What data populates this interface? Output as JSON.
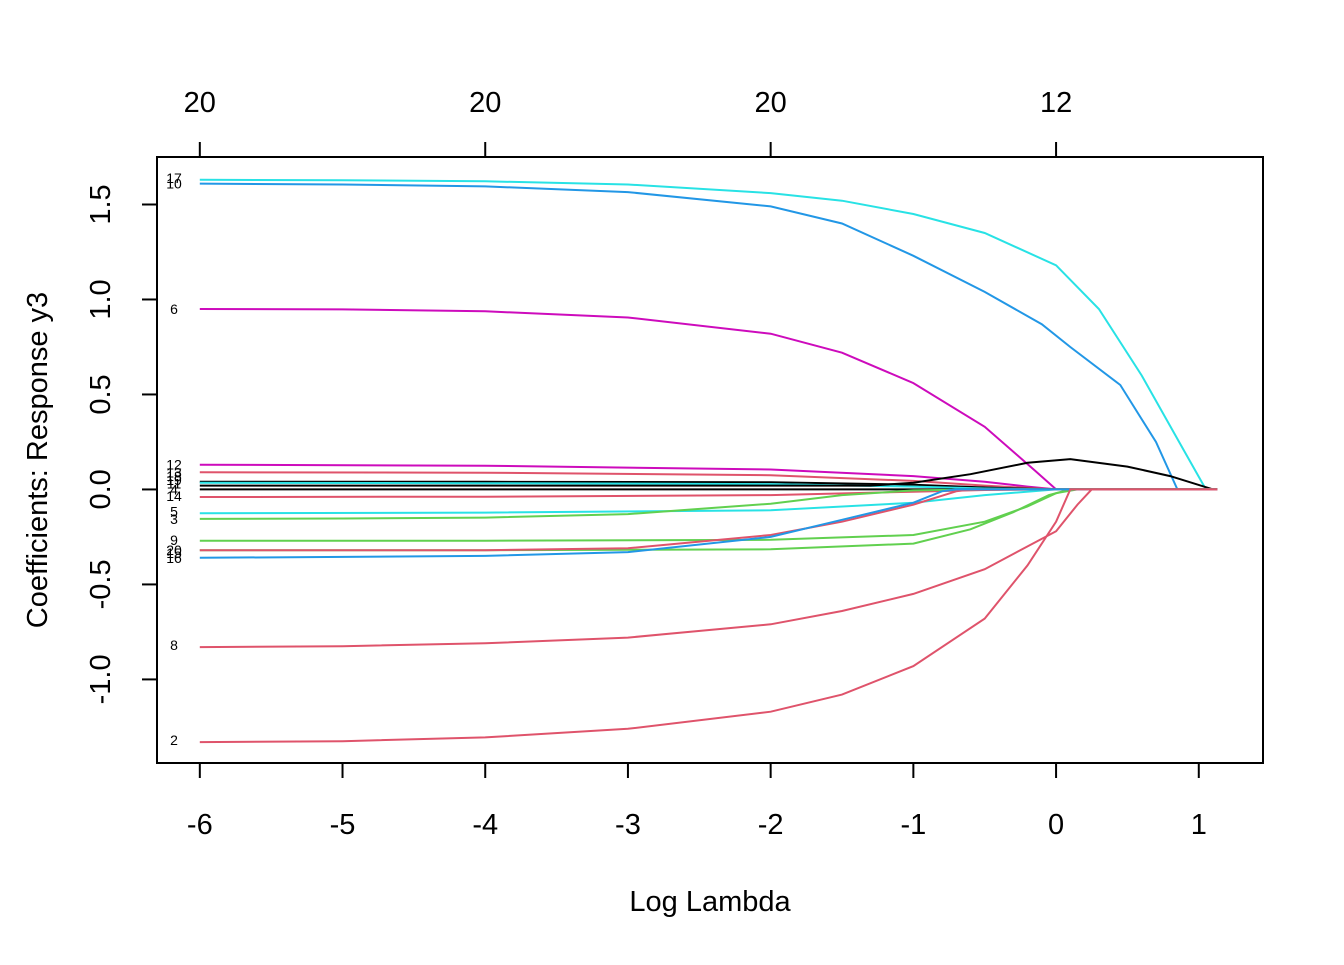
{
  "chart_data": {
    "type": "line",
    "xlabel": "Log Lambda",
    "ylabel": "Coefficients: Response y3",
    "xlim": [
      -6.3,
      1.45
    ],
    "ylim": [
      -1.44,
      1.75
    ],
    "x_ticks": [
      -6,
      -5,
      -4,
      -3,
      -2,
      -1,
      0,
      1
    ],
    "x_tick_labels": [
      "-6",
      "-5",
      "-4",
      "-3",
      "-2",
      "-1",
      "0",
      "1"
    ],
    "y_ticks": [
      -1.0,
      -0.5,
      0.0,
      0.5,
      1.0,
      1.5
    ],
    "y_tick_labels": [
      "-1.0",
      "-0.5",
      "0.0",
      "0.5",
      "1.0",
      "1.5"
    ],
    "top_axis": {
      "ticks": [
        -6,
        -4,
        -2,
        0
      ],
      "labels": [
        "20",
        "20",
        "20",
        "12"
      ]
    },
    "grid": false,
    "legend": "none",
    "series": [
      {
        "name": "17",
        "color": "#28e2e5",
        "points": [
          [
            -6,
            1.63
          ],
          [
            -5,
            1.628
          ],
          [
            -4,
            1.622
          ],
          [
            -3,
            1.605
          ],
          [
            -2,
            1.56
          ],
          [
            -1.5,
            1.52
          ],
          [
            -1,
            1.45
          ],
          [
            -0.5,
            1.35
          ],
          [
            0,
            1.18
          ],
          [
            0.3,
            0.95
          ],
          [
            0.6,
            0.6
          ],
          [
            0.9,
            0.2
          ],
          [
            1.05,
            0.0
          ],
          [
            1.13,
            0.0
          ]
        ]
      },
      {
        "name": "10",
        "color": "#2297e6",
        "points": [
          [
            -6,
            1.61
          ],
          [
            -5,
            1.605
          ],
          [
            -4,
            1.595
          ],
          [
            -3,
            1.565
          ],
          [
            -2,
            1.49
          ],
          [
            -1.5,
            1.4
          ],
          [
            -1,
            1.23
          ],
          [
            -0.5,
            1.04
          ],
          [
            -0.1,
            0.87
          ],
          [
            0.1,
            0.75
          ],
          [
            0.45,
            0.55
          ],
          [
            0.7,
            0.25
          ],
          [
            0.85,
            0.0
          ],
          [
            1.13,
            0.0
          ]
        ]
      },
      {
        "name": "6",
        "color": "#cd0bbc",
        "points": [
          [
            -6,
            0.95
          ],
          [
            -5,
            0.948
          ],
          [
            -4,
            0.938
          ],
          [
            -3,
            0.905
          ],
          [
            -2,
            0.82
          ],
          [
            -1.5,
            0.72
          ],
          [
            -1,
            0.56
          ],
          [
            -0.5,
            0.33
          ],
          [
            -0.15,
            0.1
          ],
          [
            0,
            0.0
          ],
          [
            1.13,
            0.0
          ]
        ]
      },
      {
        "name": "12",
        "color": "#cd0bbc",
        "points": [
          [
            -6,
            0.13
          ],
          [
            -4,
            0.125
          ],
          [
            -2,
            0.105
          ],
          [
            -1,
            0.07
          ],
          [
            -0.5,
            0.04
          ],
          [
            -0.2,
            0.015
          ],
          [
            0,
            0.0
          ],
          [
            1.13,
            0.0
          ]
        ]
      },
      {
        "name": "13",
        "color": "#df536b",
        "points": [
          [
            -6,
            0.09
          ],
          [
            -4,
            0.088
          ],
          [
            -2,
            0.075
          ],
          [
            -1,
            0.045
          ],
          [
            -0.5,
            0.02
          ],
          [
            0,
            0.0
          ],
          [
            1.13,
            0.0
          ]
        ]
      },
      {
        "name": "18",
        "color": "#000000",
        "points": [
          [
            -6,
            0.04
          ],
          [
            -4,
            0.04
          ],
          [
            -2,
            0.038
          ],
          [
            -1,
            0.025
          ],
          [
            -0.5,
            0.01
          ],
          [
            0,
            0.0
          ],
          [
            1.13,
            0.0
          ]
        ]
      },
      {
        "name": "19",
        "color": "#28e2e5",
        "points": [
          [
            -6,
            0.035
          ],
          [
            -4,
            0.033
          ],
          [
            -2,
            0.028
          ],
          [
            -1,
            0.015
          ],
          [
            -0.5,
            0.005
          ],
          [
            0,
            0.0
          ],
          [
            1.13,
            0.0
          ]
        ]
      },
      {
        "name": "11",
        "color": "#000000",
        "points": [
          [
            -6,
            0.02
          ],
          [
            -4,
            0.02
          ],
          [
            -2,
            0.02
          ],
          [
            -1.3,
            0.02
          ],
          [
            -1,
            0.035
          ],
          [
            -0.6,
            0.08
          ],
          [
            -0.2,
            0.14
          ],
          [
            0.1,
            0.16
          ],
          [
            0.5,
            0.12
          ],
          [
            0.8,
            0.07
          ],
          [
            1.1,
            0.0
          ],
          [
            1.13,
            0.0
          ]
        ]
      },
      {
        "name": "4",
        "color": "#000000",
        "points": [
          [
            -6,
            0.0
          ],
          [
            -4,
            0.0
          ],
          [
            -2,
            0.0
          ],
          [
            -1,
            0.0
          ],
          [
            1.13,
            0.0
          ]
        ]
      },
      {
        "name": "14",
        "color": "#df536b",
        "points": [
          [
            -6,
            -0.04
          ],
          [
            -4,
            -0.038
          ],
          [
            -2,
            -0.03
          ],
          [
            -1,
            -0.012
          ],
          [
            -0.5,
            -0.003
          ],
          [
            0,
            0.0
          ],
          [
            1.13,
            0.0
          ]
        ]
      },
      {
        "name": "5",
        "color": "#28e2e5",
        "points": [
          [
            -6,
            -0.125
          ],
          [
            -4,
            -0.122
          ],
          [
            -2,
            -0.11
          ],
          [
            -1,
            -0.07
          ],
          [
            -0.5,
            -0.03
          ],
          [
            0,
            0.0
          ],
          [
            0.2,
            0.0
          ],
          [
            1.13,
            0.0
          ]
        ]
      },
      {
        "name": "3",
        "color": "#61d04f",
        "points": [
          [
            -6,
            -0.155
          ],
          [
            -5,
            -0.153
          ],
          [
            -4,
            -0.148
          ],
          [
            -3,
            -0.13
          ],
          [
            -2,
            -0.075
          ],
          [
            -1.5,
            -0.03
          ],
          [
            -1,
            -0.005
          ],
          [
            -0.5,
            0.0
          ],
          [
            1.13,
            0.0
          ]
        ]
      },
      {
        "name": "9",
        "color": "#61d04f",
        "points": [
          [
            -6,
            -0.27
          ],
          [
            -4,
            -0.27
          ],
          [
            -2,
            -0.265
          ],
          [
            -1,
            -0.24
          ],
          [
            -0.5,
            -0.17
          ],
          [
            -0.2,
            -0.09
          ],
          [
            0,
            -0.02
          ],
          [
            0.15,
            0.0
          ],
          [
            1.13,
            0.0
          ]
        ]
      },
      {
        "name": "20",
        "color": "#61d04f",
        "points": [
          [
            -6,
            -0.32
          ],
          [
            -4,
            -0.32
          ],
          [
            -2,
            -0.315
          ],
          [
            -1,
            -0.285
          ],
          [
            -0.6,
            -0.21
          ],
          [
            -0.3,
            -0.12
          ],
          [
            -0.05,
            -0.03
          ],
          [
            0.1,
            0.0
          ],
          [
            1.13,
            0.0
          ]
        ]
      },
      {
        "name": "15",
        "color": "#df536b",
        "points": [
          [
            -6,
            -0.32
          ],
          [
            -4,
            -0.32
          ],
          [
            -3,
            -0.31
          ],
          [
            -2,
            -0.24
          ],
          [
            -1.5,
            -0.17
          ],
          [
            -1,
            -0.08
          ],
          [
            -0.7,
            -0.01
          ],
          [
            -0.6,
            0.0
          ],
          [
            1.13,
            0.0
          ]
        ]
      },
      {
        "name": "16",
        "color": "#2297e6",
        "points": [
          [
            -6,
            -0.36
          ],
          [
            -4,
            -0.35
          ],
          [
            -3,
            -0.33
          ],
          [
            -2,
            -0.25
          ],
          [
            -1.5,
            -0.16
          ],
          [
            -1,
            -0.07
          ],
          [
            -0.8,
            -0.01
          ],
          [
            -0.7,
            0.0
          ],
          [
            1.13,
            0.0
          ]
        ]
      },
      {
        "name": "8",
        "color": "#df536b",
        "points": [
          [
            -6,
            -0.83
          ],
          [
            -5,
            -0.825
          ],
          [
            -4,
            -0.81
          ],
          [
            -3,
            -0.78
          ],
          [
            -2,
            -0.71
          ],
          [
            -1.5,
            -0.64
          ],
          [
            -1,
            -0.55
          ],
          [
            -0.5,
            -0.42
          ],
          [
            0,
            -0.22
          ],
          [
            0.15,
            -0.08
          ],
          [
            0.25,
            0.0
          ],
          [
            1.13,
            0.0
          ]
        ]
      },
      {
        "name": "2",
        "color": "#df536b",
        "points": [
          [
            -6,
            -1.33
          ],
          [
            -5,
            -1.325
          ],
          [
            -4,
            -1.305
          ],
          [
            -3,
            -1.26
          ],
          [
            -2,
            -1.17
          ],
          [
            -1.5,
            -1.08
          ],
          [
            -1,
            -0.93
          ],
          [
            -0.5,
            -0.68
          ],
          [
            -0.2,
            -0.4
          ],
          [
            0,
            -0.17
          ],
          [
            0.1,
            0.0
          ],
          [
            1.13,
            0.0
          ]
        ]
      }
    ],
    "curve_labels": [
      {
        "text": "17",
        "y": 1.64
      },
      {
        "text": "10",
        "y": 1.61
      },
      {
        "text": "6",
        "y": 0.95
      },
      {
        "text": "12",
        "y": 0.13
      },
      {
        "text": "13",
        "y": 0.09
      },
      {
        "text": "18",
        "y": 0.07
      },
      {
        "text": "19",
        "y": 0.05
      },
      {
        "text": "11",
        "y": 0.03
      },
      {
        "text": "4",
        "y": 0.0
      },
      {
        "text": "14",
        "y": -0.035
      },
      {
        "text": "5",
        "y": -0.115
      },
      {
        "text": "3",
        "y": -0.155
      },
      {
        "text": "9",
        "y": -0.265
      },
      {
        "text": "20",
        "y": -0.32
      },
      {
        "text": "15",
        "y": -0.335
      },
      {
        "text": "16",
        "y": -0.36
      },
      {
        "text": "8",
        "y": -0.82
      },
      {
        "text": "2",
        "y": -1.32
      }
    ]
  }
}
